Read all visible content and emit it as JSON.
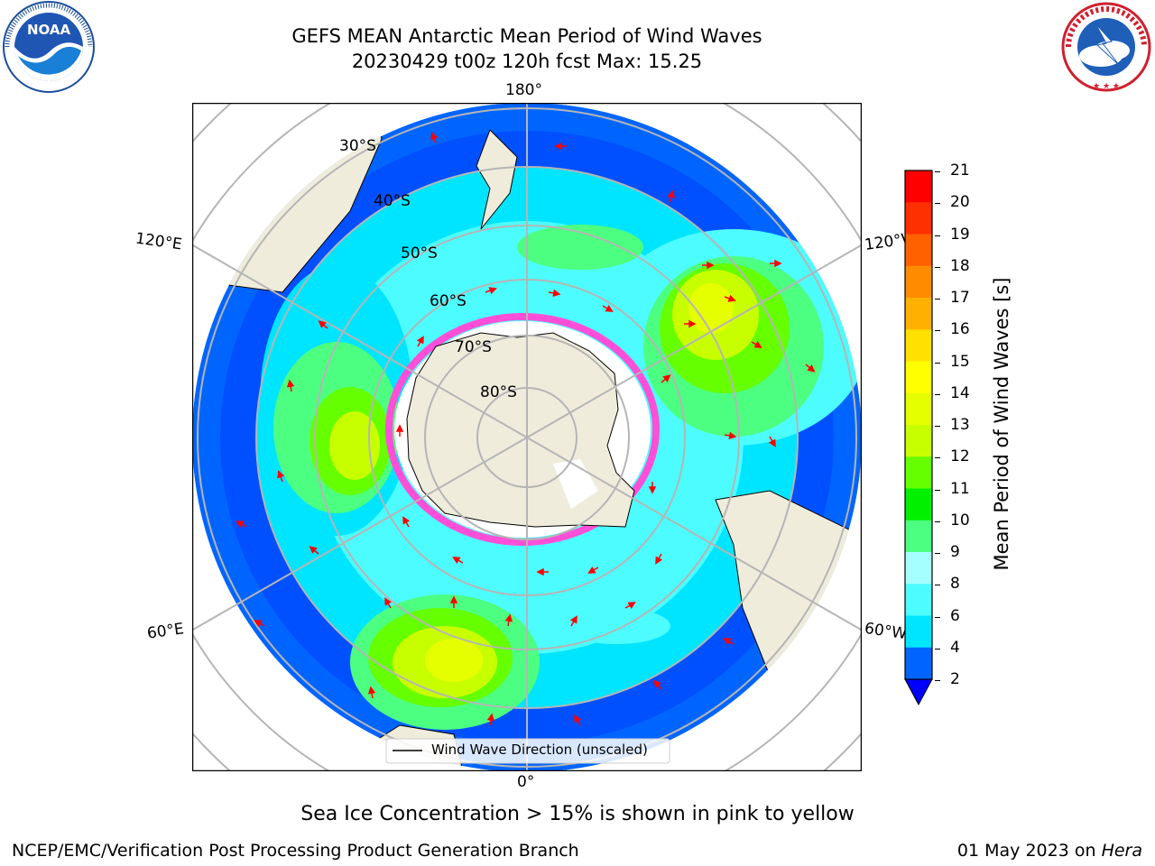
{
  "header": {
    "title_line1": "GEFS MEAN Antarctic Mean Period of Wind Waves",
    "title_line2": "20230429 t00z 120h fcst   Max: 15.25"
  },
  "logos": {
    "left": {
      "icon": "noaa-logo-icon",
      "text": "NOAA"
    },
    "right": {
      "icon": "nws-logo-icon",
      "text": "NATIONAL WEATHER SERVICE"
    }
  },
  "map": {
    "projection_labels": {
      "top": "180°",
      "bottom": "0°",
      "left_upper": "120°E",
      "left_lower": "60°E",
      "right_upper": "120°W",
      "right_lower": "60°W"
    },
    "latitude_labels": [
      "30°S",
      "40°S",
      "50°S",
      "60°S",
      "70°S",
      "80°S"
    ],
    "legend_label": "Wind Wave Direction (unscaled)",
    "colors": {
      "land": "#efecdc",
      "ice": "#ffffff",
      "ice_edge": "#ff4fd8",
      "arrow": "#ff0000"
    }
  },
  "colorbar": {
    "label": "Mean Period of Wind Waves [s]",
    "ticks": [
      "2",
      "4",
      "6",
      "8",
      "9",
      "10",
      "11",
      "12",
      "13",
      "14",
      "15",
      "16",
      "17",
      "18",
      "19",
      "20",
      "21"
    ],
    "colors": [
      "#0065ff",
      "#00e5ff",
      "#4dfcff",
      "#a6ffff",
      "#4dff80",
      "#00f000",
      "#66ff00",
      "#c8ff00",
      "#e6ff00",
      "#ffff00",
      "#ffe000",
      "#ffb000",
      "#ff8c00",
      "#ff6000",
      "#ff3000",
      "#ff0000"
    ],
    "extend_color": "#0000ff"
  },
  "captions": {
    "sea_ice": "Sea Ice Concentration > 15% is shown in pink to yellow",
    "credit": "NCEP/EMC/Verification Post Processing Product Generation Branch",
    "date_prefix": "01 May 2023 on ",
    "machine": "Hera"
  }
}
